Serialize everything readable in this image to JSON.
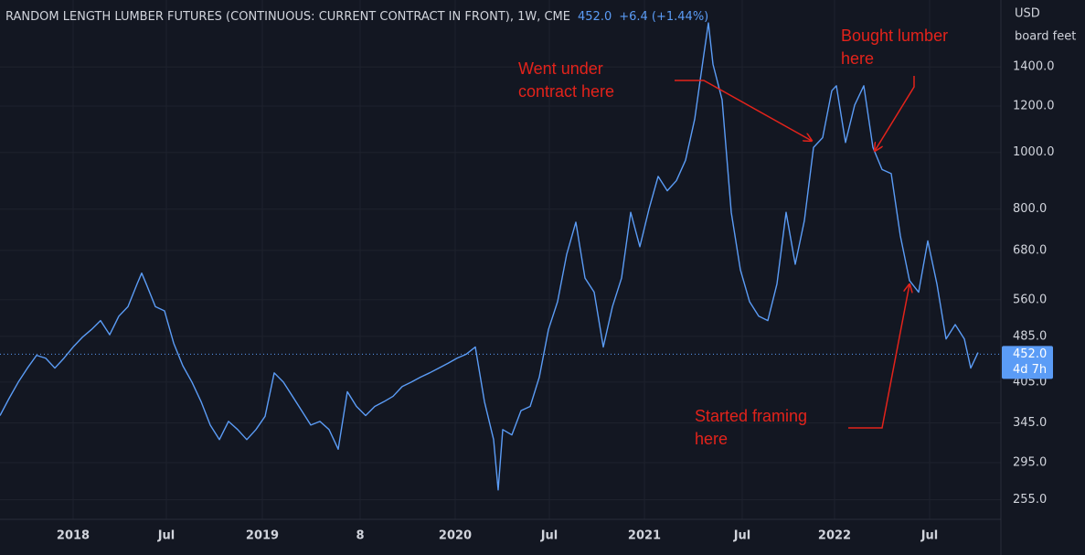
{
  "chart_data": {
    "type": "line",
    "title": "RANDOM LENGTH LUMBER FUTURES (CONTINUOUS: CURRENT CONTRACT IN FRONT), 1W, CME",
    "header_price": "452.0",
    "header_change": "+6.4 (+1.44%)",
    "y_axis_label": [
      "USD",
      "board feet"
    ],
    "log_scale": true,
    "grid": true,
    "series": [
      {
        "name": "Lumber",
        "color": "#5b9cf6",
        "x": [
          0,
          2.5,
          5,
          7.5,
          10,
          12.5,
          15,
          17.5,
          20,
          22.5,
          25,
          27.5,
          30,
          32.5,
          35,
          37.5,
          38.75,
          40,
          42.5,
          45,
          47.5,
          50,
          52.5,
          55,
          57.5,
          60,
          62.5,
          65,
          67.5,
          70,
          72.5,
          75,
          77.5,
          80,
          82.5,
          85,
          87.5,
          90,
          92.5,
          95,
          97.5,
          100,
          102.5,
          105,
          107.5,
          110,
          112.5,
          115,
          117.5,
          120,
          122.5,
          125,
          127.5,
          130,
          132.5,
          135,
          136.25,
          137.5,
          140,
          142.5,
          145,
          147.5,
          150,
          152.5,
          155,
          157.5,
          160,
          162.5,
          165,
          167.5,
          170,
          172.5,
          175,
          177.5,
          180,
          182.5,
          185,
          187.5,
          190,
          192.5,
          193.75,
          195,
          197.5,
          200,
          202.5,
          205,
          207.5,
          210,
          212.5,
          215,
          217.5,
          220,
          222.5,
          225,
          227.5,
          228.75,
          231.25,
          233.75,
          236.25,
          238.75,
          241.25,
          243.75,
          246.25,
          248.75,
          251.25,
          253.75,
          256.25,
          258.75,
          261.25,
          263.75,
          265.5,
          267.5
        ],
        "values": [
          355,
          380,
          405,
          428,
          450,
          445,
          428,
          445,
          465,
          483,
          498,
          516,
          488,
          525,
          545,
          596,
          622,
          596,
          545,
          536,
          472,
          432,
          405,
          375,
          342,
          323,
          347,
          336,
          323,
          336,
          354,
          420,
          405,
          383,
          362,
          342,
          347,
          336,
          311,
          390,
          368,
          355,
          368,
          375,
          383,
          398,
          405,
          413,
          420,
          428,
          436,
          445,
          452,
          465,
          375,
          323,
          265,
          336,
          329,
          362,
          368,
          413,
          498,
          556,
          670,
          760,
          610,
          577,
          465,
          545,
          610,
          790,
          690,
          800,
          910,
          860,
          895,
          970,
          1140,
          1470,
          1665,
          1415,
          1230,
          790,
          630,
          556,
          525,
          516,
          596,
          790,
          644,
          765,
          1020,
          1060,
          1275,
          1300,
          1040,
          1205,
          1300,
          1020,
          935,
          920,
          720,
          604,
          577,
          706,
          596,
          480,
          508,
          480,
          428,
          455
        ]
      }
    ],
    "xlim": [
      0,
      273.75
    ],
    "xticks": [
      {
        "value": 20,
        "label": "2018"
      },
      {
        "value": 45.5,
        "label": "Jul"
      },
      {
        "value": 71.75,
        "label": "2019"
      },
      {
        "value": 98.5,
        "label": "8"
      },
      {
        "value": 124.5,
        "label": "2020"
      },
      {
        "value": 150.25,
        "label": "Jul"
      },
      {
        "value": 176.25,
        "label": "2021"
      },
      {
        "value": 203,
        "label": "Jul"
      },
      {
        "value": 228.25,
        "label": "2022"
      },
      {
        "value": 254.25,
        "label": "Jul"
      }
    ],
    "ylim": [
      236,
      1822
    ],
    "yticks": [
      {
        "value": 255,
        "label": "255.0"
      },
      {
        "value": 295,
        "label": "295.0"
      },
      {
        "value": 345,
        "label": "345.0"
      },
      {
        "value": 405,
        "label": "405.0"
      },
      {
        "value": 485,
        "label": "485.0"
      },
      {
        "value": 560,
        "label": "560.0"
      },
      {
        "value": 680,
        "label": "680.0"
      },
      {
        "value": 800,
        "label": "800.0"
      },
      {
        "value": 1000,
        "label": "1000.0"
      },
      {
        "value": 1200,
        "label": "1200.0"
      },
      {
        "value": 1400,
        "label": "1400.0"
      }
    ],
    "last_price": {
      "value": 452,
      "label": "452.0"
    },
    "countdown": "4d 7h",
    "annotations": [
      {
        "lines": [
          "Went under",
          "contract here"
        ]
      },
      {
        "lines": [
          "Bought lumber",
          "here"
        ]
      },
      {
        "lines": [
          "Started framing",
          "here"
        ]
      }
    ]
  }
}
